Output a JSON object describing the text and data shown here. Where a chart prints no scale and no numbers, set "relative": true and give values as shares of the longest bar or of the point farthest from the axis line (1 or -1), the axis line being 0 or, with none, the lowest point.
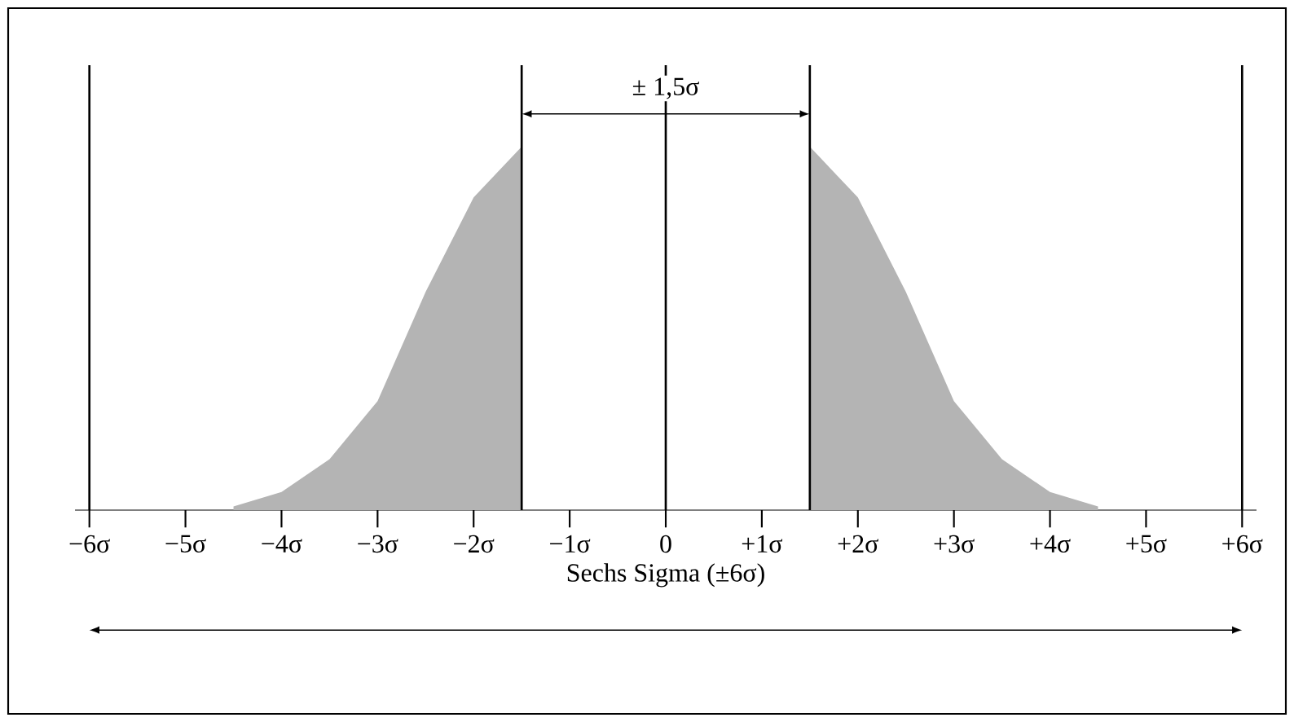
{
  "chart_data": {
    "type": "area",
    "relative": true,
    "xlabel": "Sechs Sigma (±6σ)",
    "annotations": [
      "± 1,5σ"
    ],
    "xlim": [
      -6.15,
      6.15
    ],
    "xticks": [
      {
        "value": -6,
        "label": "−6σ"
      },
      {
        "value": -5,
        "label": "−5σ"
      },
      {
        "value": -4,
        "label": "−4σ"
      },
      {
        "value": -3,
        "label": "−3σ"
      },
      {
        "value": -2,
        "label": "−2σ"
      },
      {
        "value": -1,
        "label": "−1σ"
      },
      {
        "value": 0,
        "label": "0"
      },
      {
        "value": 1,
        "label": "+1σ"
      },
      {
        "value": 2,
        "label": "+2σ"
      },
      {
        "value": 3,
        "label": "+3σ"
      },
      {
        "value": 4,
        "label": "+4σ"
      },
      {
        "value": 5,
        "label": "+5σ"
      },
      {
        "value": 6,
        "label": "+6σ"
      }
    ],
    "series": [
      {
        "color": "#b4b4b4",
        "x": [
          -4.5,
          -4,
          -3.5,
          -3,
          -2.5,
          -2,
          -1.5
        ],
        "values": [
          0.01,
          0.05,
          0.14,
          0.3,
          0.6,
          0.86,
          1
        ]
      },
      {
        "color": "#b4b4b4",
        "x": [
          1.5,
          2,
          2.5,
          3,
          3.5,
          4,
          4.5
        ],
        "values": [
          1,
          0.86,
          0.6,
          0.3,
          0.14,
          0.05,
          0.01
        ]
      }
    ],
    "ref_lines": [
      {
        "axis": "x",
        "value": -6
      },
      {
        "axis": "x",
        "value": -1.5
      },
      {
        "axis": "x",
        "value": 0
      },
      {
        "axis": "x",
        "value": 1.5
      },
      {
        "axis": "x",
        "value": 6
      }
    ],
    "grid": false
  }
}
